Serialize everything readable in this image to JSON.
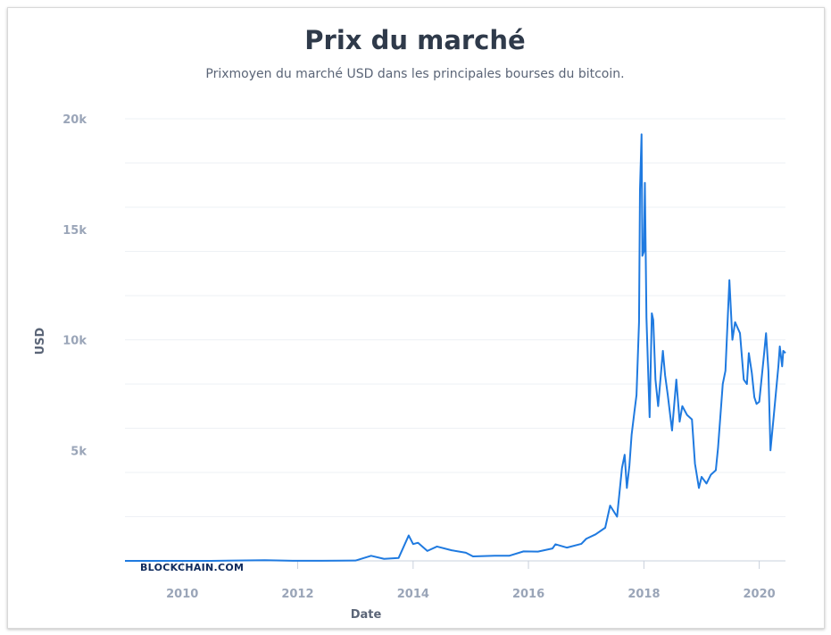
{
  "chart_data": {
    "type": "line",
    "title": "Prix du marché",
    "subtitle": "Prixmoyen du marché USD dans les principales bourses du bitcoin.",
    "xlabel": "Date",
    "ylabel": "USD",
    "ylim": [
      0,
      20000
    ],
    "xlim": [
      "2009-01-03",
      "2020-06-15"
    ],
    "y_ticks": [
      {
        "value": 20000,
        "label": "20k"
      },
      {
        "value": 15000,
        "label": "15k"
      },
      {
        "value": 10000,
        "label": "10k"
      },
      {
        "value": 5000,
        "label": "5k"
      }
    ],
    "x_ticks": [
      "2010",
      "2012",
      "2014",
      "2016",
      "2018",
      "2020"
    ],
    "grid": true,
    "line_color": "#1f7ae0",
    "watermark": "BLOCKCHAIN.COM",
    "series": [
      {
        "name": "",
        "points": [
          [
            "2009-01-03",
            0
          ],
          [
            "2010-07-01",
            0.1
          ],
          [
            "2011-06-08",
            29
          ],
          [
            "2011-12-01",
            3
          ],
          [
            "2012-06-01",
            5
          ],
          [
            "2013-01-01",
            13
          ],
          [
            "2013-04-10",
            230
          ],
          [
            "2013-07-01",
            90
          ],
          [
            "2013-10-01",
            130
          ],
          [
            "2013-12-04",
            1150
          ],
          [
            "2014-01-01",
            760
          ],
          [
            "2014-02-01",
            820
          ],
          [
            "2014-04-01",
            450
          ],
          [
            "2014-06-01",
            650
          ],
          [
            "2014-09-01",
            480
          ],
          [
            "2014-12-01",
            370
          ],
          [
            "2015-01-15",
            200
          ],
          [
            "2015-06-01",
            230
          ],
          [
            "2015-09-01",
            230
          ],
          [
            "2015-12-01",
            430
          ],
          [
            "2016-03-01",
            420
          ],
          [
            "2016-06-01",
            560
          ],
          [
            "2016-06-20",
            750
          ],
          [
            "2016-09-01",
            600
          ],
          [
            "2016-12-01",
            770
          ],
          [
            "2017-01-01",
            1000
          ],
          [
            "2017-03-01",
            1200
          ],
          [
            "2017-05-01",
            1500
          ],
          [
            "2017-06-01",
            2500
          ],
          [
            "2017-07-15",
            2000
          ],
          [
            "2017-08-15",
            4200
          ],
          [
            "2017-09-01",
            4800
          ],
          [
            "2017-09-15",
            3300
          ],
          [
            "2017-10-01",
            4300
          ],
          [
            "2017-10-15",
            5700
          ],
          [
            "2017-11-01",
            6700
          ],
          [
            "2017-11-15",
            7500
          ],
          [
            "2017-12-01",
            10800
          ],
          [
            "2017-12-07",
            16800
          ],
          [
            "2017-12-17",
            19300
          ],
          [
            "2017-12-22",
            13800
          ],
          [
            "2018-01-01",
            14000
          ],
          [
            "2018-01-07",
            17100
          ],
          [
            "2018-01-17",
            11000
          ],
          [
            "2018-02-06",
            6500
          ],
          [
            "2018-02-20",
            11200
          ],
          [
            "2018-03-01",
            10900
          ],
          [
            "2018-03-15",
            8200
          ],
          [
            "2018-04-01",
            7000
          ],
          [
            "2018-05-01",
            9500
          ],
          [
            "2018-05-15",
            8400
          ],
          [
            "2018-06-01",
            7500
          ],
          [
            "2018-06-28",
            5900
          ],
          [
            "2018-07-25",
            8200
          ],
          [
            "2018-08-15",
            6300
          ],
          [
            "2018-09-01",
            7000
          ],
          [
            "2018-10-01",
            6600
          ],
          [
            "2018-11-01",
            6400
          ],
          [
            "2018-11-20",
            4400
          ],
          [
            "2018-12-15",
            3300
          ],
          [
            "2019-01-01",
            3800
          ],
          [
            "2019-02-01",
            3500
          ],
          [
            "2019-03-01",
            3900
          ],
          [
            "2019-04-01",
            4100
          ],
          [
            "2019-04-15",
            5100
          ],
          [
            "2019-05-15",
            8000
          ],
          [
            "2019-06-01",
            8600
          ],
          [
            "2019-06-26",
            12700
          ],
          [
            "2019-07-15",
            10000
          ],
          [
            "2019-08-01",
            10800
          ],
          [
            "2019-09-01",
            10300
          ],
          [
            "2019-09-25",
            8200
          ],
          [
            "2019-10-15",
            8000
          ],
          [
            "2019-10-27",
            9400
          ],
          [
            "2019-11-15",
            8500
          ],
          [
            "2019-12-01",
            7400
          ],
          [
            "2019-12-15",
            7100
          ],
          [
            "2020-01-01",
            7200
          ],
          [
            "2020-02-01",
            9400
          ],
          [
            "2020-02-13",
            10300
          ],
          [
            "2020-02-28",
            8600
          ],
          [
            "2020-03-12",
            5000
          ],
          [
            "2020-04-01",
            6500
          ],
          [
            "2020-05-01",
            8800
          ],
          [
            "2020-05-10",
            9700
          ],
          [
            "2020-05-25",
            8800
          ],
          [
            "2020-06-01",
            9500
          ],
          [
            "2020-06-15",
            9400
          ]
        ]
      }
    ]
  }
}
